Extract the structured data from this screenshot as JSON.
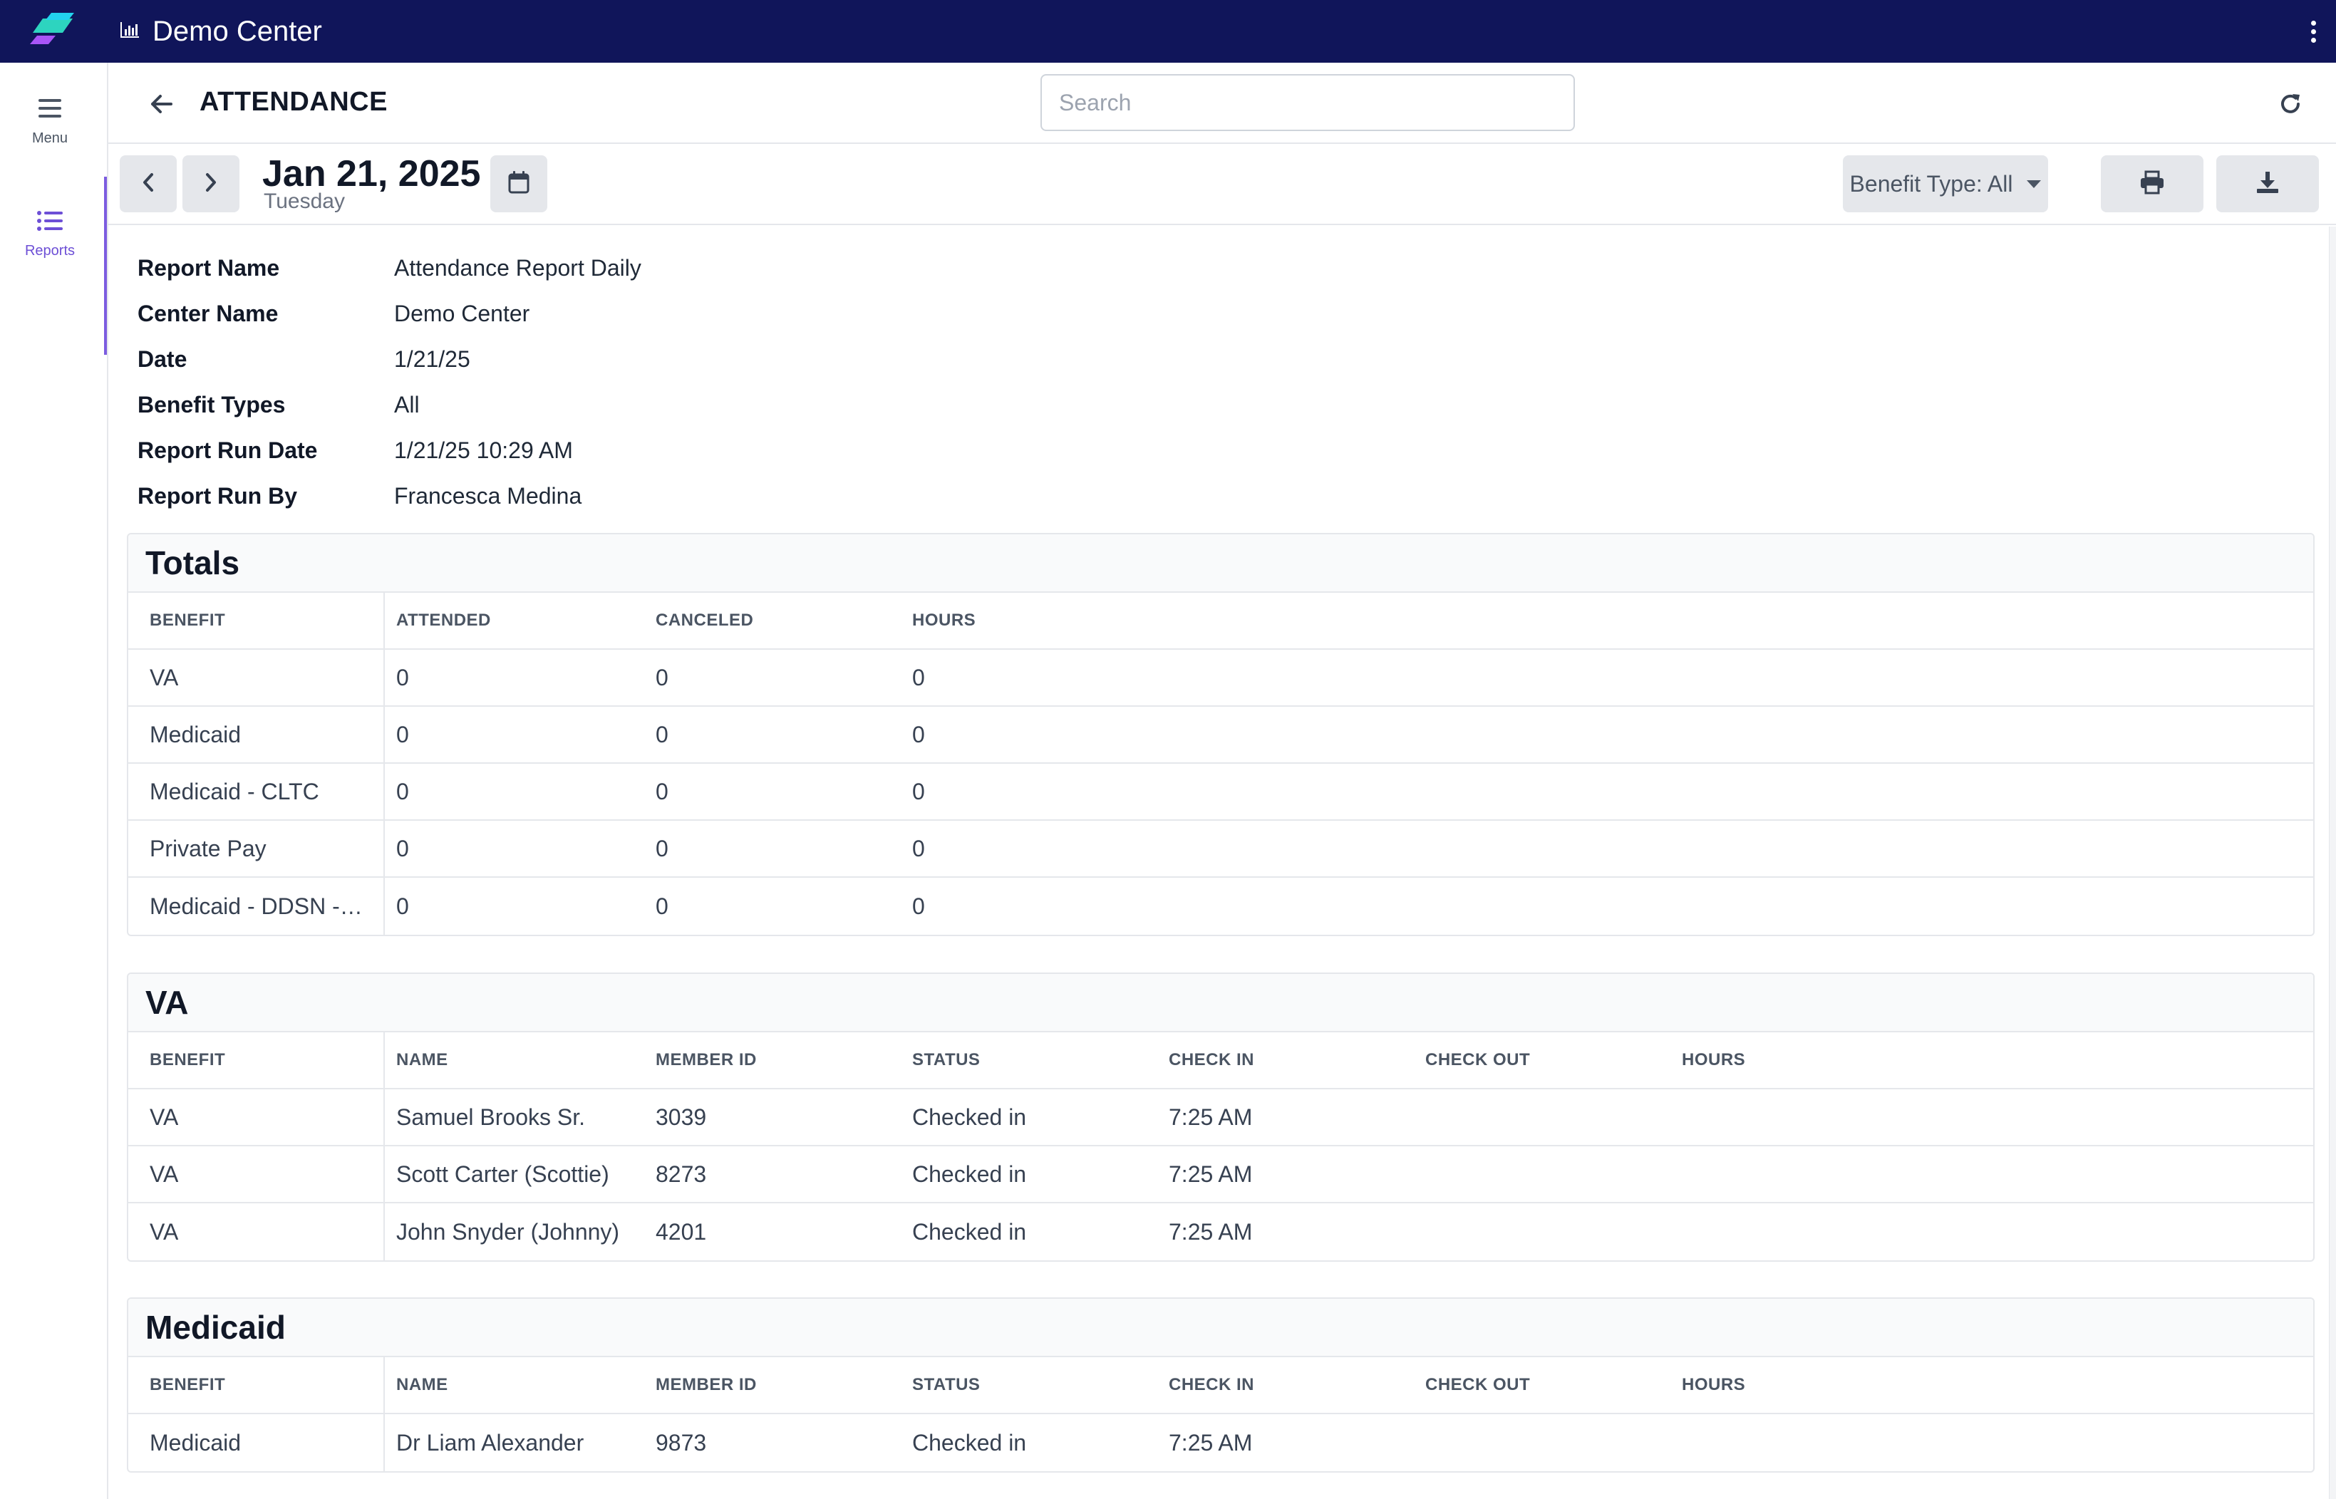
{
  "app": {
    "title": "Demo Center"
  },
  "sidebar": {
    "items": [
      {
        "label": "Menu",
        "icon": "hamburger-icon"
      },
      {
        "label": "Reports",
        "icon": "list-icon"
      }
    ]
  },
  "header": {
    "title": "ATTENDANCE",
    "search_placeholder": "Search"
  },
  "toolbar": {
    "date": "Jan 21, 2025",
    "weekday": "Tuesday",
    "benefit_filter": "Benefit Type: All"
  },
  "report_info": [
    {
      "label": "Report Name",
      "value": "Attendance Report Daily"
    },
    {
      "label": "Center Name",
      "value": "Demo Center"
    },
    {
      "label": "Date",
      "value": "1/21/25"
    },
    {
      "label": "Benefit Types",
      "value": "All"
    },
    {
      "label": "Report Run Date",
      "value": "1/21/25 10:29 AM"
    },
    {
      "label": "Report Run By",
      "value": "Francesca Medina"
    }
  ],
  "totals": {
    "title": "Totals",
    "columns": [
      "BENEFIT",
      "ATTENDED",
      "CANCELED",
      "HOURS"
    ],
    "rows": [
      [
        "VA",
        "0",
        "0",
        "0"
      ],
      [
        "Medicaid",
        "0",
        "0",
        "0"
      ],
      [
        "Medicaid - CLTC",
        "0",
        "0",
        "0"
      ],
      [
        "Private Pay",
        "0",
        "0",
        "0"
      ],
      [
        "Medicaid - DDSN -…",
        "0",
        "0",
        "0"
      ]
    ]
  },
  "va": {
    "title": "VA",
    "columns": [
      "BENEFIT",
      "NAME",
      "MEMBER ID",
      "STATUS",
      "CHECK IN",
      "CHECK OUT",
      "HOURS"
    ],
    "rows": [
      [
        "VA",
        "Samuel Brooks Sr.",
        "3039",
        "Checked in",
        "7:25 AM",
        "",
        ""
      ],
      [
        "VA",
        "Scott Carter (Scottie)",
        "8273",
        "Checked in",
        "7:25 AM",
        "",
        ""
      ],
      [
        "VA",
        "John Snyder (Johnny)",
        "4201",
        "Checked in",
        "7:25 AM",
        "",
        ""
      ]
    ]
  },
  "medicaid": {
    "title": "Medicaid",
    "columns": [
      "BENEFIT",
      "NAME",
      "MEMBER ID",
      "STATUS",
      "CHECK IN",
      "CHECK OUT",
      "HOURS"
    ],
    "rows": [
      [
        "Medicaid",
        "Dr Liam Alexander",
        "9873",
        "Checked in",
        "7:25 AM",
        "",
        ""
      ]
    ]
  },
  "colors": {
    "topbar": "#10155a",
    "accent": "#7c5ce0"
  }
}
